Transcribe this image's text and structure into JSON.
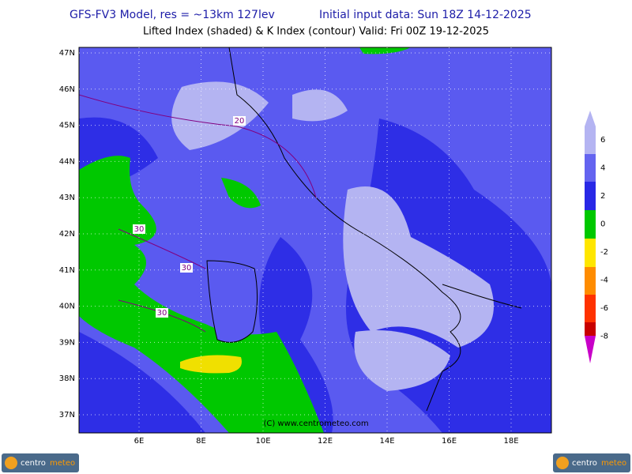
{
  "header": {
    "title_left": "GFS-FV3 Model, res = ~13km 127lev",
    "title_right": "Initial input data: Sun 18Z 14-12-2025",
    "subtitle": "Lifted Index (shaded) & K Index (contour) Valid: Fri 00Z 19-12-2025"
  },
  "map": {
    "lat_labels": [
      "47N",
      "46N",
      "45N",
      "44N",
      "43N",
      "42N",
      "41N",
      "40N",
      "39N",
      "38N",
      "37N"
    ],
    "lon_labels": [
      "6E",
      "8E",
      "10E",
      "12E",
      "14E",
      "16E",
      "18E"
    ],
    "contour_labels": [
      "20",
      "30",
      "30",
      "30"
    ],
    "copyright": "(C) www.centrometeo.com"
  },
  "colorbar": {
    "labels": [
      "6",
      "4",
      "2",
      "0",
      "-2",
      "-4",
      "-6",
      "-8"
    ]
  },
  "logos": [
    {
      "a": "centro",
      "b": "meteo"
    },
    {
      "a": "centro",
      "b": "meteo"
    }
  ]
}
